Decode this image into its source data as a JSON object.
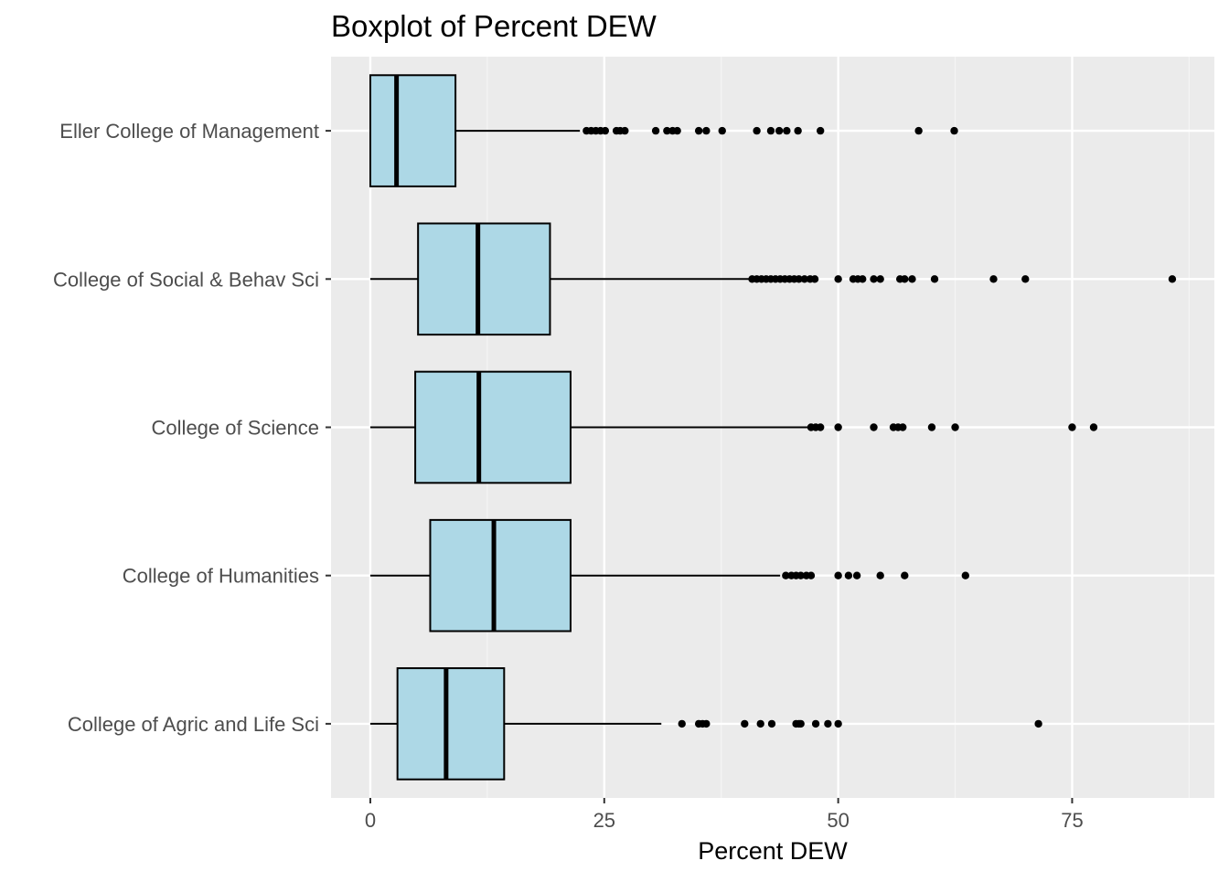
{
  "chart_data": {
    "type": "boxplot",
    "orientation": "horizontal",
    "title": "Boxplot of Percent DEW",
    "xlabel": "Percent DEW",
    "ylabel": "",
    "xlim": [
      -4.2,
      90.2
    ],
    "xticks": [
      0,
      25,
      50,
      75
    ],
    "xtick_labels": [
      "0",
      "25",
      "50",
      "75"
    ],
    "grid": true,
    "legend": "none",
    "categories": [
      "Eller College of Management",
      "College of Social & Behav Sci",
      "College of Science",
      "College of Humanities",
      "College of Agric and Life Sci"
    ],
    "boxes": [
      {
        "category": "Eller College of Management",
        "whisker_low": 0,
        "q1": 0,
        "median": 2.8,
        "q3": 9.1,
        "whisker_high": 22.4,
        "outliers": [
          23.1,
          23.6,
          24.1,
          24.6,
          25.1,
          26.3,
          26.7,
          27.2,
          30.5,
          31.7,
          32.3,
          32.8,
          35.1,
          35.9,
          37.6,
          41.3,
          42.8,
          43.7,
          44.5,
          45.7,
          48.1,
          58.6,
          62.4
        ]
      },
      {
        "category": "College of Social & Behav Sci",
        "whisker_low": 0,
        "q1": 5.1,
        "median": 11.5,
        "q3": 19.2,
        "whisker_high": 40.5,
        "outliers": [
          40.8,
          41.3,
          41.8,
          42.3,
          42.8,
          43.3,
          43.8,
          44.3,
          44.8,
          45.3,
          45.8,
          46.4,
          47.0,
          47.5,
          50.0,
          51.6,
          52.1,
          52.6,
          53.8,
          54.5,
          56.6,
          57.1,
          57.9,
          60.3,
          66.6,
          70.0,
          85.7
        ]
      },
      {
        "category": "College of Science",
        "whisker_low": 0,
        "q1": 4.8,
        "median": 11.6,
        "q3": 21.4,
        "whisker_high": 46.8,
        "outliers": [
          47.1,
          47.6,
          48.1,
          50.0,
          53.8,
          55.9,
          56.4,
          56.9,
          60.0,
          62.5,
          75.0,
          77.3
        ]
      },
      {
        "category": "College of Humanities",
        "whisker_low": 0,
        "q1": 6.4,
        "median": 13.2,
        "q3": 21.4,
        "whisker_high": 43.8,
        "outliers": [
          44.4,
          45.0,
          45.5,
          46.0,
          46.6,
          47.1,
          50.0,
          51.1,
          52.0,
          54.5,
          57.1,
          63.6
        ]
      },
      {
        "category": "College of Agric and Life Sci",
        "whisker_low": 0,
        "q1": 2.9,
        "median": 8.1,
        "q3": 14.3,
        "whisker_high": 31.1,
        "outliers": [
          33.3,
          35.1,
          35.5,
          35.9,
          40.0,
          41.7,
          42.9,
          45.5,
          45.8,
          46.0,
          47.6,
          48.9,
          50.0,
          71.4
        ]
      }
    ],
    "colors": {
      "panel_background": "#ebebeb",
      "grid_major": "#ffffff",
      "grid_minor": "#f5f5f5",
      "box_fill": "#add8e6",
      "box_stroke": "#000000",
      "outlier": "#000000",
      "tick_label": "#4d4d4d",
      "title": "#000000"
    }
  }
}
